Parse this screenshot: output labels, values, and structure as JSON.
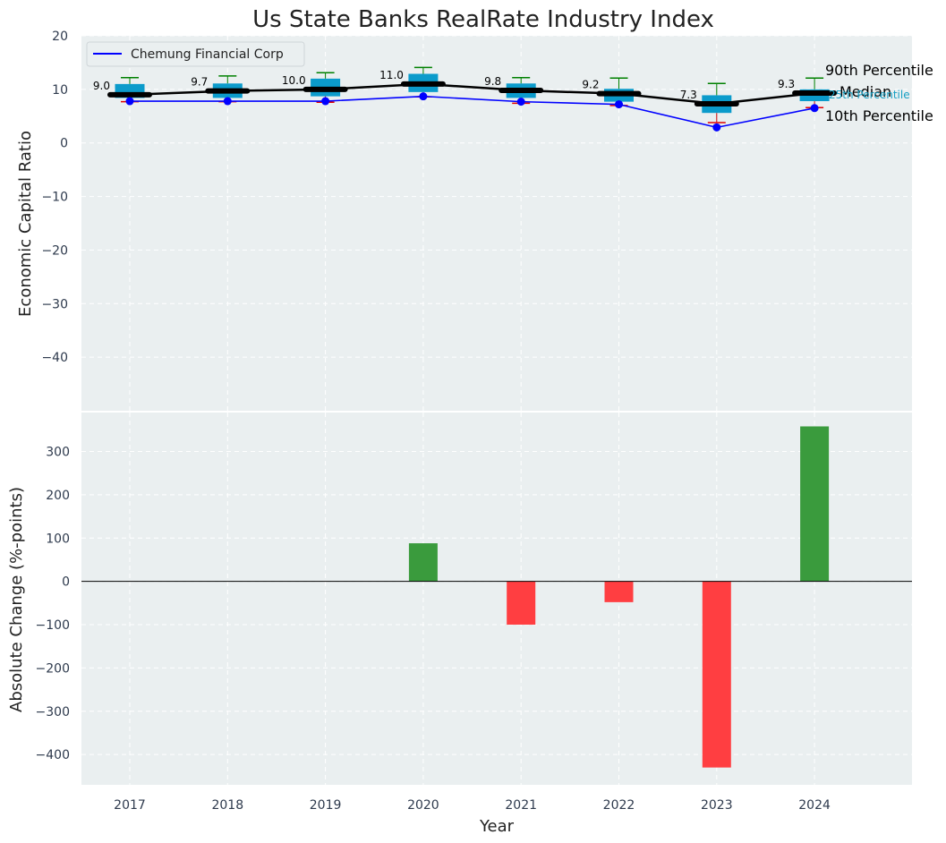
{
  "chart_data": [
    {
      "type": "box",
      "title": "Us State Banks RealRate Industry Index",
      "ylabel": "Economic Capital Ratio",
      "ylim": [
        -50,
        20
      ],
      "yticks": [
        -40,
        -30,
        -20,
        -10,
        0,
        10,
        20
      ],
      "grid": true,
      "legend_position": "top-left",
      "categories": [
        "2017",
        "2018",
        "2019",
        "2020",
        "2021",
        "2022",
        "2023",
        "2024"
      ],
      "box_stats": {
        "p10": [
          7.7,
          7.7,
          7.6,
          8.6,
          7.4,
          7.0,
          3.8,
          6.6
        ],
        "p25": [
          8.4,
          8.4,
          8.7,
          9.5,
          8.4,
          7.7,
          5.6,
          7.8
        ],
        "median": [
          9.0,
          9.7,
          10.0,
          11.0,
          9.8,
          9.2,
          7.3,
          9.3
        ],
        "p75": [
          11.0,
          11.1,
          12.0,
          12.9,
          11.1,
          10.1,
          8.9,
          10.0
        ],
        "p90": [
          12.2,
          12.5,
          13.1,
          14.1,
          12.2,
          12.1,
          11.1,
          12.1
        ]
      },
      "median_labels": [
        "9.0",
        "9.7",
        "10.0",
        "11.0",
        "9.8",
        "9.2",
        "7.3",
        "9.3"
      ],
      "series": [
        {
          "name": "Chemung Financial Corp",
          "color": "#0000ff",
          "values": [
            7.8,
            7.8,
            7.8,
            8.7,
            7.7,
            7.2,
            2.9,
            6.5
          ]
        }
      ],
      "annotations": [
        "90th Percentile",
        "Median",
        "25th Percentile",
        "10th Percentile"
      ]
    },
    {
      "type": "bar",
      "xlabel": "Year",
      "ylabel": "Absolute Change (%-points)",
      "ylim": [
        -470,
        390
      ],
      "yticks": [
        -400,
        -300,
        -200,
        -100,
        0,
        100,
        200,
        300
      ],
      "grid": true,
      "categories": [
        "2017",
        "2018",
        "2019",
        "2020",
        "2021",
        "2022",
        "2023",
        "2024"
      ],
      "values": [
        0,
        0,
        0,
        88,
        -100,
        -48,
        -430,
        358
      ],
      "colors": {
        "positive": "#3a9b3d",
        "negative": "#ff3e41"
      }
    }
  ]
}
